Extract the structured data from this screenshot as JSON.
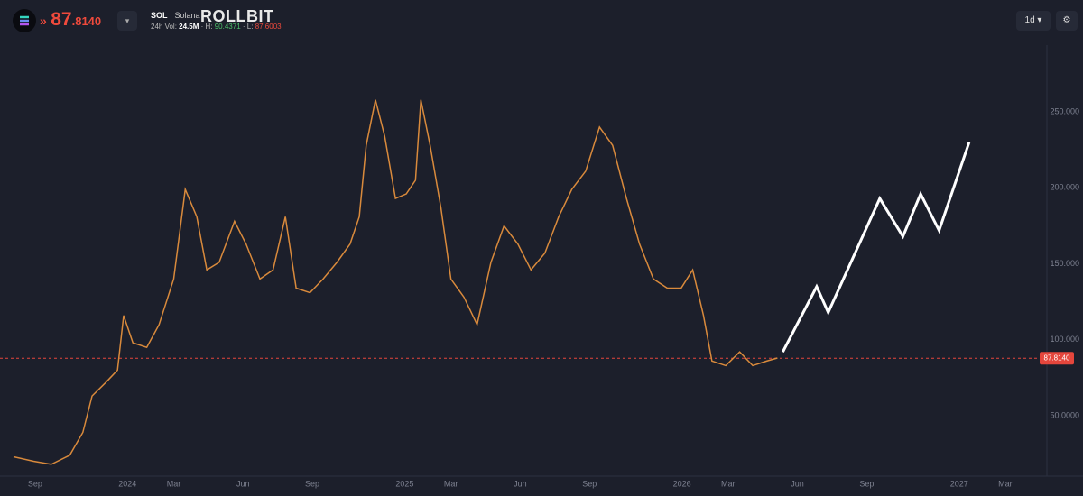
{
  "header": {
    "price_int": "87",
    "price_frac": ".8140",
    "symbol": "SOL",
    "name": "· Solana",
    "brand": "ROLLBIT",
    "vol_label": "24h Vol:",
    "vol": "24.5M",
    "high_label": "H:",
    "high": "90.4371",
    "low_label": "· L:",
    "low": "87.6003",
    "interval": "1d"
  },
  "chart_data": {
    "type": "line",
    "xlim": [
      "2023-08-03",
      "2027-04-25"
    ],
    "ylim": [
      12,
      294
    ],
    "xticks": [
      {
        "value": "2023-09-01",
        "label": "Sep"
      },
      {
        "value": "2024-01-01",
        "label": "2024"
      },
      {
        "value": "2024-03-01",
        "label": "Mar"
      },
      {
        "value": "2024-06-01",
        "label": "Jun"
      },
      {
        "value": "2024-09-01",
        "label": "Sep"
      },
      {
        "value": "2025-01-01",
        "label": "2025"
      },
      {
        "value": "2025-03-01",
        "label": "Mar"
      },
      {
        "value": "2025-06-01",
        "label": "Jun"
      },
      {
        "value": "2025-09-01",
        "label": "Sep"
      },
      {
        "value": "2026-01-01",
        "label": "2026"
      },
      {
        "value": "2026-03-01",
        "label": "Mar"
      },
      {
        "value": "2026-06-01",
        "label": "Jun"
      },
      {
        "value": "2026-09-01",
        "label": "Sep"
      },
      {
        "value": "2027-01-01",
        "label": "2027"
      },
      {
        "value": "2027-03-01",
        "label": "Mar"
      }
    ],
    "yticks": [
      {
        "value": 50,
        "label": "50.0000"
      },
      {
        "value": 100,
        "label": "100.000"
      },
      {
        "value": 150,
        "label": "150.000"
      },
      {
        "value": 200,
        "label": "200.000"
      },
      {
        "value": 250,
        "label": "250.000"
      }
    ],
    "current_price": {
      "value": 87.814,
      "label": "87.8140",
      "color": "#e5463c"
    },
    "grid": false,
    "series": [
      {
        "color": "#d98a3c",
        "x": [
          "2023-08-03",
          "2023-08-29",
          "2023-09-22",
          "2023-10-16",
          "2023-11-03",
          "2023-11-15",
          "2023-12-03",
          "2023-12-18",
          "2023-12-26",
          "2024-01-08",
          "2024-01-26",
          "2024-02-12",
          "2024-03-01",
          "2024-03-16",
          "2024-03-31",
          "2024-04-14",
          "2024-04-30",
          "2024-05-20",
          "2024-06-05",
          "2024-06-23",
          "2024-07-10",
          "2024-07-26",
          "2024-08-10",
          "2024-08-28",
          "2024-09-15",
          "2024-10-03",
          "2024-10-20",
          "2024-11-02",
          "2024-11-11",
          "2024-11-23",
          "2024-12-05",
          "2024-12-19",
          "2025-01-03",
          "2025-01-15",
          "2025-01-22",
          "2025-02-04",
          "2025-02-18",
          "2025-03-01",
          "2025-03-18",
          "2025-04-05",
          "2025-04-23",
          "2025-05-10",
          "2025-05-28",
          "2025-06-15",
          "2025-07-03",
          "2025-07-21",
          "2025-08-08",
          "2025-08-26",
          "2025-09-14",
          "2025-10-01",
          "2025-10-19",
          "2025-11-06",
          "2025-11-24",
          "2025-12-12",
          "2025-12-30",
          "2026-01-15",
          "2026-01-29",
          "2026-02-10",
          "2026-02-28",
          "2026-03-16",
          "2026-04-03",
          "2026-04-21",
          "2026-05-05"
        ],
        "values": [
          23,
          20,
          18,
          24,
          39,
          63,
          72,
          80,
          116,
          98,
          95,
          110,
          140,
          199,
          181,
          146,
          151,
          178,
          163,
          140,
          146,
          181,
          134,
          131,
          140,
          151,
          163,
          181,
          228,
          258,
          234,
          193,
          196,
          205,
          258,
          228,
          187,
          140,
          128,
          110,
          151,
          175,
          163,
          146,
          157,
          181,
          199,
          211,
          240,
          228,
          193,
          163,
          140,
          134,
          134,
          146,
          116,
          86,
          83,
          92,
          83,
          86,
          88
        ]
      },
      {
        "color": "#ffffff",
        "x": [
          "2026-05-12",
          "2026-06-26",
          "2026-07-11",
          "2026-09-18",
          "2026-10-18",
          "2026-11-11",
          "2026-12-05",
          "2027-01-14"
        ],
        "values": [
          92,
          135,
          118,
          193,
          168,
          196,
          172,
          230
        ]
      }
    ]
  }
}
